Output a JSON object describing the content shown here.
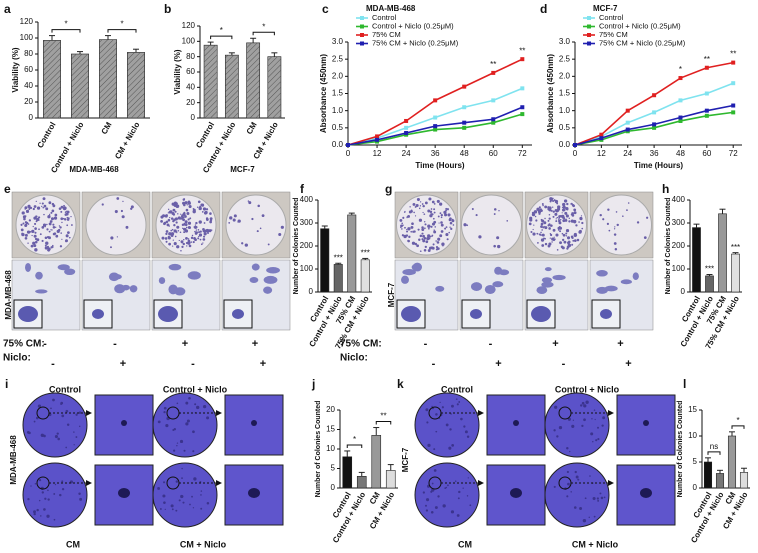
{
  "chart_data": [
    {
      "type": "bar",
      "label": "a",
      "ylabel": "Viability (%)",
      "xlabel": "MDA-MB-468",
      "categories": [
        "Control",
        "Control + Niclo",
        "CM",
        "CM + Niclo"
      ],
      "values": [
        97,
        80,
        98,
        82
      ],
      "errors": [
        6,
        3,
        5,
        4
      ],
      "color": "#a0a0a0",
      "hatch": true,
      "ylim": [
        0,
        120
      ],
      "yticks": [
        0,
        20,
        40,
        60,
        80,
        100,
        120
      ],
      "brackets": [
        {
          "label": "*",
          "between": [
            0,
            1
          ]
        },
        {
          "label": "*",
          "between": [
            2,
            3
          ]
        }
      ]
    },
    {
      "type": "bar",
      "label": "b",
      "ylabel": "Viability (%)",
      "xlabel": "MCF-7",
      "categories": [
        "Control",
        "Control + Niclo",
        "CM",
        "CM + Niclo"
      ],
      "values": [
        95,
        82,
        98,
        80
      ],
      "errors": [
        4,
        3,
        6,
        5
      ],
      "color": "#a0a0a0",
      "hatch": true,
      "ylim": [
        0,
        120
      ],
      "yticks": [
        0,
        20,
        40,
        60,
        80,
        100,
        120
      ],
      "brackets": [
        {
          "label": "*",
          "between": [
            0,
            1
          ]
        },
        {
          "label": "*",
          "between": [
            2,
            3
          ]
        }
      ]
    },
    {
      "type": "line",
      "label": "c",
      "title": "MDA-MB-468",
      "xlabel": "Time (Hours)",
      "ylabel": "Absorbance (450nm)",
      "x": [
        0,
        12,
        24,
        36,
        48,
        60,
        72
      ],
      "xlim": [
        0,
        76
      ],
      "xticks": [
        0,
        12,
        24,
        36,
        48,
        60,
        72
      ],
      "ylim": [
        0,
        3
      ],
      "yticks": [
        {
          "value": 0,
          "label": "0.0"
        },
        0.5,
        {
          "value": 1,
          "label": "1.0"
        },
        1.5,
        {
          "value": 2,
          "label": "2.0"
        },
        2.5,
        {
          "value": 3,
          "label": "3.0"
        }
      ],
      "series": [
        {
          "name": "Control",
          "color": "#7fe3ef",
          "values": [
            0,
            0.2,
            0.5,
            0.8,
            1.1,
            1.3,
            1.65
          ]
        },
        {
          "name": "Control + Niclo (0.25μM)",
          "color": "#2eb82e",
          "values": [
            0,
            0.1,
            0.3,
            0.45,
            0.5,
            0.65,
            0.9
          ]
        },
        {
          "name": "75% CM",
          "color": "#e02020",
          "values": [
            0,
            0.25,
            0.7,
            1.3,
            1.7,
            2.1,
            2.5
          ]
        },
        {
          "name": "75% CM + Niclo (0.25μM)",
          "color": "#1f1fb0",
          "values": [
            0,
            0.15,
            0.35,
            0.55,
            0.65,
            0.75,
            1.1
          ]
        }
      ],
      "annotations": [
        null,
        null,
        null,
        null,
        null,
        "**",
        "**"
      ]
    },
    {
      "type": "line",
      "label": "d",
      "title": "MCF-7",
      "xlabel": "Time (Hours)",
      "ylabel": "Absorbance (450nm)",
      "x": [
        0,
        12,
        24,
        36,
        48,
        60,
        72
      ],
      "xlim": [
        0,
        76
      ],
      "xticks": [
        0,
        12,
        24,
        36,
        48,
        60,
        72
      ],
      "ylim": [
        0,
        3
      ],
      "yticks": [
        {
          "value": 0,
          "label": "0.0"
        },
        0.5,
        {
          "value": 1,
          "label": "1.0"
        },
        1.5,
        {
          "value": 2,
          "label": "2.0"
        },
        2.5,
        {
          "value": 3,
          "label": "3.0"
        }
      ],
      "series": [
        {
          "name": "Control",
          "color": "#7fe3ef",
          "values": [
            0,
            0.25,
            0.65,
            0.95,
            1.3,
            1.5,
            1.8
          ]
        },
        {
          "name": "Control + Niclo (0.25μM)",
          "color": "#2eb82e",
          "values": [
            0,
            0.15,
            0.4,
            0.5,
            0.7,
            0.85,
            0.95
          ]
        },
        {
          "name": "75% CM",
          "color": "#e02020",
          "values": [
            0,
            0.3,
            1.0,
            1.45,
            1.95,
            2.25,
            2.4
          ]
        },
        {
          "name": "75% CM + Niclo (0.25μM)",
          "color": "#1f1fb0",
          "values": [
            0,
            0.2,
            0.45,
            0.6,
            0.8,
            1.0,
            1.15
          ]
        }
      ],
      "annotations": [
        null,
        null,
        null,
        null,
        "*",
        "**",
        "**"
      ]
    },
    {
      "type": "bar",
      "label": "f",
      "ylabel": "Number of Colonies Counted",
      "categories": [
        "Control",
        "Control + Niclo",
        "75% CM",
        "75% CM + Niclo"
      ],
      "values": [
        275,
        120,
        335,
        140
      ],
      "errors": [
        12,
        5,
        8,
        6
      ],
      "colors": [
        "#111111",
        "#666666",
        "#999999",
        "#e0e0e0"
      ],
      "ylim": [
        0,
        400
      ],
      "yticks": [
        0,
        100,
        200,
        300,
        400
      ],
      "annotations": [
        null,
        "***",
        null,
        "***"
      ]
    },
    {
      "type": "bar",
      "label": "h",
      "ylabel": "Number of Colonies Counted",
      "categories": [
        "Control",
        "Control + Niclo",
        "75% CM",
        "75% CM + Niclo"
      ],
      "values": [
        280,
        70,
        340,
        165
      ],
      "errors": [
        15,
        6,
        20,
        6
      ],
      "colors": [
        "#111111",
        "#666666",
        "#999999",
        "#e0e0e0"
      ],
      "ylim": [
        0,
        400
      ],
      "yticks": [
        0,
        100,
        200,
        300,
        400
      ],
      "annotations": [
        null,
        "***",
        null,
        "***"
      ]
    },
    {
      "type": "bar",
      "label": "j",
      "ylabel": "Number of Colonies Counted",
      "categories": [
        "Control",
        "Control + Niclo",
        "CM",
        "CM + Niclo"
      ],
      "values": [
        8,
        3,
        13.5,
        4.5
      ],
      "errors": [
        1.5,
        1,
        2,
        1.5
      ],
      "colors": [
        "#111111",
        "#777777",
        "#999999",
        "#dddddd"
      ],
      "ylim": [
        0,
        20
      ],
      "yticks": [
        0,
        5,
        10,
        15,
        20
      ],
      "brackets": [
        {
          "label": "*",
          "between": [
            0,
            1
          ]
        },
        {
          "label": "**",
          "between": [
            2,
            3
          ]
        }
      ]
    },
    {
      "type": "bar",
      "label": "l",
      "ylabel": "Number of Colonies Counted",
      "categories": [
        "Control",
        "Control + Niclo",
        "CM",
        "CM + Niclo"
      ],
      "values": [
        5,
        2.8,
        10,
        3
      ],
      "errors": [
        0.8,
        0.6,
        0.8,
        0.8
      ],
      "colors": [
        "#111111",
        "#777777",
        "#999999",
        "#dddddd"
      ],
      "ylim": [
        0,
        15
      ],
      "yticks": [
        0,
        5,
        10,
        15
      ],
      "brackets": [
        {
          "label": "ns",
          "between": [
            0,
            1
          ]
        },
        {
          "label": "*",
          "between": [
            2,
            3
          ]
        }
      ]
    }
  ],
  "image_panels": [
    {
      "label": "e",
      "cell_line": "MDA-MB-468",
      "rows": [
        {
          "name": "75% CM:",
          "signs": [
            "-",
            "-",
            "+",
            "+"
          ]
        },
        {
          "name": "Niclo:",
          "signs": [
            "-",
            "+",
            "-",
            "+"
          ]
        }
      ]
    },
    {
      "label": "g",
      "cell_line": "MCF-7",
      "rows": [
        {
          "name": "75% CM:",
          "signs": [
            "-",
            "-",
            "+",
            "+"
          ]
        },
        {
          "name": "Niclo:",
          "signs": [
            "-",
            "+",
            "-",
            "+"
          ]
        }
      ]
    },
    {
      "label": "i",
      "cell_line": "MDA-MB-468",
      "captions": [
        "Control",
        "Control + Niclo",
        "CM",
        "CM + Niclo"
      ]
    },
    {
      "label": "k",
      "cell_line": "MCF-7",
      "captions": [
        "Control",
        "Control + Niclo",
        "CM",
        "CM + Niclo"
      ]
    }
  ]
}
